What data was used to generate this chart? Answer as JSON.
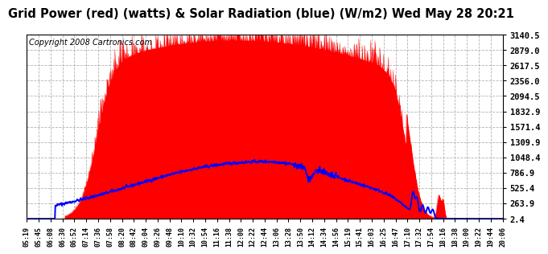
{
  "title": "Grid Power (red) (watts) & Solar Radiation (blue) (W/m2) Wed May 28 20:21",
  "copyright_text": "Copyright 2008 Cartronics.com",
  "yticks": [
    2.4,
    263.9,
    525.4,
    786.9,
    1048.4,
    1309.9,
    1571.4,
    1832.9,
    2094.5,
    2356.0,
    2617.5,
    2879.0,
    3140.5
  ],
  "ymin": 2.4,
  "ymax": 3140.5,
  "bg_color": "#ffffff",
  "plot_bg_color": "#ffffff",
  "grid_color": "#aaaaaa",
  "fill_color": "#ff0000",
  "line_color": "#0000ff",
  "title_fontsize": 10.5,
  "copyright_fontsize": 7.0,
  "xtick_labels": [
    "05:19",
    "05:45",
    "06:08",
    "06:30",
    "06:52",
    "07:14",
    "07:36",
    "07:58",
    "08:20",
    "08:42",
    "09:04",
    "09:26",
    "09:48",
    "10:10",
    "10:32",
    "10:54",
    "11:16",
    "11:38",
    "12:00",
    "12:22",
    "12:44",
    "13:06",
    "13:28",
    "13:50",
    "14:12",
    "14:34",
    "14:56",
    "15:19",
    "15:41",
    "16:03",
    "16:25",
    "16:47",
    "17:10",
    "17:32",
    "17:54",
    "18:16",
    "18:38",
    "19:00",
    "19:22",
    "19:44",
    "20:06"
  ]
}
